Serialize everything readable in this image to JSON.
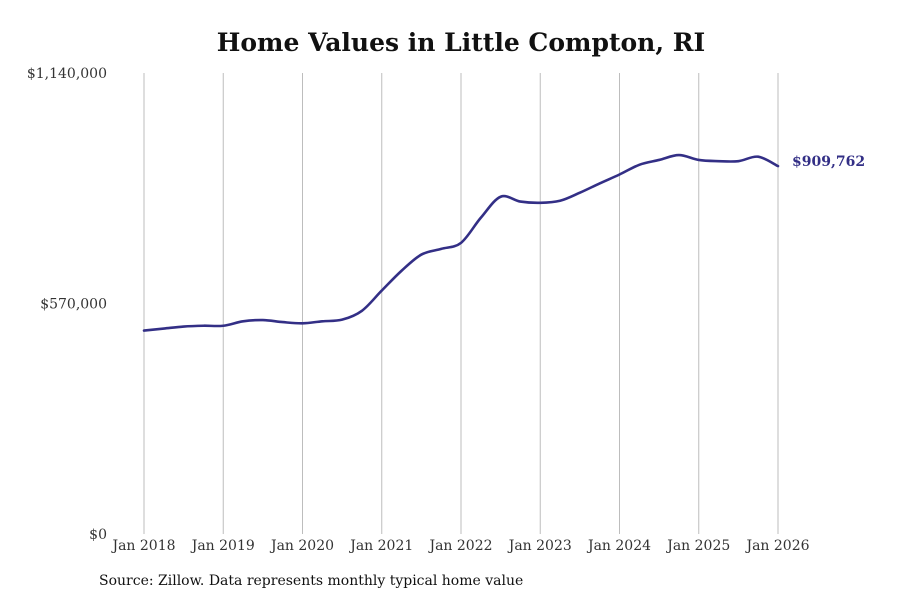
{
  "chart_data": {
    "type": "line",
    "title": "Home Values in Little Compton, RI",
    "xlabel": "",
    "ylabel": "",
    "ylim": [
      0,
      1140000
    ],
    "xlim": [
      2018.0,
      2026.0
    ],
    "y_ticks": [
      {
        "value": 0,
        "label": "$0"
      },
      {
        "value": 570000,
        "label": "$570,000"
      },
      {
        "value": 1140000,
        "label": "$1,140,000"
      }
    ],
    "x_ticks": [
      {
        "value": 2018,
        "label": "Jan 2018"
      },
      {
        "value": 2019,
        "label": "Jan 2019"
      },
      {
        "value": 2020,
        "label": "Jan 2020"
      },
      {
        "value": 2021,
        "label": "Jan 2021"
      },
      {
        "value": 2022,
        "label": "Jan 2022"
      },
      {
        "value": 2023,
        "label": "Jan 2023"
      },
      {
        "value": 2024,
        "label": "Jan 2024"
      },
      {
        "value": 2025,
        "label": "Jan 2025"
      },
      {
        "value": 2026,
        "label": "Jan 2026"
      }
    ],
    "grid": {
      "vertical": true,
      "horizontal": false
    },
    "series": [
      {
        "name": "Typical home value",
        "color": "#332f86",
        "x": [
          2018.0,
          2018.25,
          2018.5,
          2018.75,
          2019.0,
          2019.25,
          2019.5,
          2019.75,
          2020.0,
          2020.25,
          2020.5,
          2020.75,
          2021.0,
          2021.25,
          2021.5,
          2021.75,
          2022.0,
          2022.25,
          2022.5,
          2022.75,
          2023.0,
          2023.25,
          2023.5,
          2023.75,
          2024.0,
          2024.25,
          2024.5,
          2024.75,
          2025.0,
          2025.25,
          2025.5,
          2025.75,
          2026.0
        ],
        "values": [
          503000,
          508000,
          513000,
          515000,
          515000,
          526000,
          529000,
          524000,
          521000,
          526000,
          530000,
          552000,
          602000,
          651000,
          691000,
          705000,
          720000,
          782000,
          834000,
          822000,
          819000,
          824000,
          844000,
          867000,
          889000,
          913000,
          925000,
          937000,
          925000,
          922000,
          922000,
          933000,
          909762
        ]
      }
    ],
    "annotations": [
      {
        "text": "$909,762",
        "color": "#332f86",
        "anchor": "last-point"
      }
    ]
  },
  "footer": {
    "source": "Source: Zillow. Data represents monthly typical home value"
  }
}
